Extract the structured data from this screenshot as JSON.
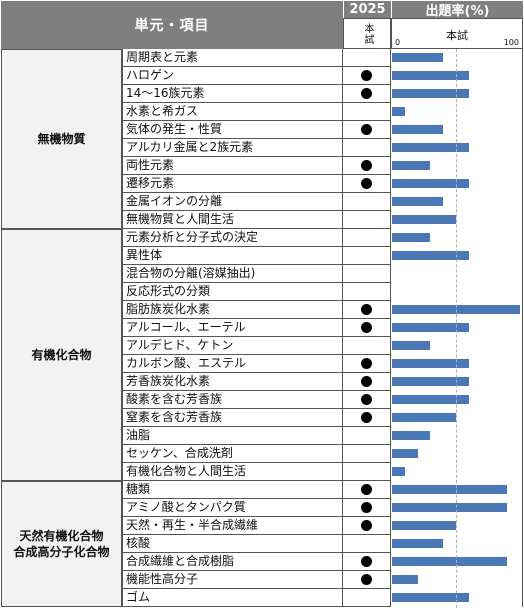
{
  "header": {
    "title": "単元・項目",
    "year": "2025",
    "year_sub": "本試",
    "rate_title": "出題率(%)",
    "rate_sub": "本試",
    "axis_min": "0",
    "axis_max": "100"
  },
  "colors": {
    "header_bg": "#7f7f7f",
    "bar": "#4a78b4",
    "group_bg": "#f2f2f2"
  },
  "groups": [
    {
      "label": "無機物質",
      "items": [
        {
          "label": "周期表と元素",
          "marked": false,
          "rate": 40
        },
        {
          "label": "ハロゲン",
          "marked": true,
          "rate": 60
        },
        {
          "label": "14～16族元素",
          "marked": true,
          "rate": 60
        },
        {
          "label": "水素と希ガス",
          "marked": false,
          "rate": 10
        },
        {
          "label": "気体の発生・性質",
          "marked": true,
          "rate": 40
        },
        {
          "label": "アルカリ金属と2族元素",
          "marked": false,
          "rate": 60
        },
        {
          "label": "両性元素",
          "marked": true,
          "rate": 30
        },
        {
          "label": "遷移元素",
          "marked": true,
          "rate": 60
        },
        {
          "label": "金属イオンの分離",
          "marked": false,
          "rate": 40
        },
        {
          "label": "無機物質と人間生活",
          "marked": false,
          "rate": 50
        }
      ]
    },
    {
      "label": "有機化合物",
      "items": [
        {
          "label": "元素分析と分子式の決定",
          "marked": false,
          "rate": 30
        },
        {
          "label": "異性体",
          "marked": false,
          "rate": 60
        },
        {
          "label": "混合物の分離(溶媒抽出)",
          "marked": false,
          "rate": 0
        },
        {
          "label": "反応形式の分類",
          "marked": false,
          "rate": 0
        },
        {
          "label": "脂肪族炭化水素",
          "marked": true,
          "rate": 100
        },
        {
          "label": "アルコール、エーテル",
          "marked": true,
          "rate": 60
        },
        {
          "label": "アルデヒド、ケトン",
          "marked": false,
          "rate": 30
        },
        {
          "label": "カルボン酸、エステル",
          "marked": true,
          "rate": 60
        },
        {
          "label": "芳香族炭化水素",
          "marked": true,
          "rate": 60
        },
        {
          "label": "酸素を含む芳香族",
          "marked": true,
          "rate": 60
        },
        {
          "label": "窒素を含む芳香族",
          "marked": true,
          "rate": 50
        },
        {
          "label": "油脂",
          "marked": false,
          "rate": 30
        },
        {
          "label": "セッケン、合成洗剤",
          "marked": false,
          "rate": 20
        },
        {
          "label": "有機化合物と人間生活",
          "marked": false,
          "rate": 10
        }
      ]
    },
    {
      "label": "天然有機化合物\n合成高分子化合物",
      "items": [
        {
          "label": "糖類",
          "marked": true,
          "rate": 90
        },
        {
          "label": "アミノ酸とタンパク質",
          "marked": true,
          "rate": 90
        },
        {
          "label": "天然・再生・半合成繊維",
          "marked": true,
          "rate": 50
        },
        {
          "label": "核酸",
          "marked": false,
          "rate": 40
        },
        {
          "label": "合成繊維と合成樹脂",
          "marked": true,
          "rate": 90
        },
        {
          "label": "機能性高分子",
          "marked": true,
          "rate": 20
        },
        {
          "label": "ゴム",
          "marked": false,
          "rate": 60
        }
      ]
    }
  ]
}
